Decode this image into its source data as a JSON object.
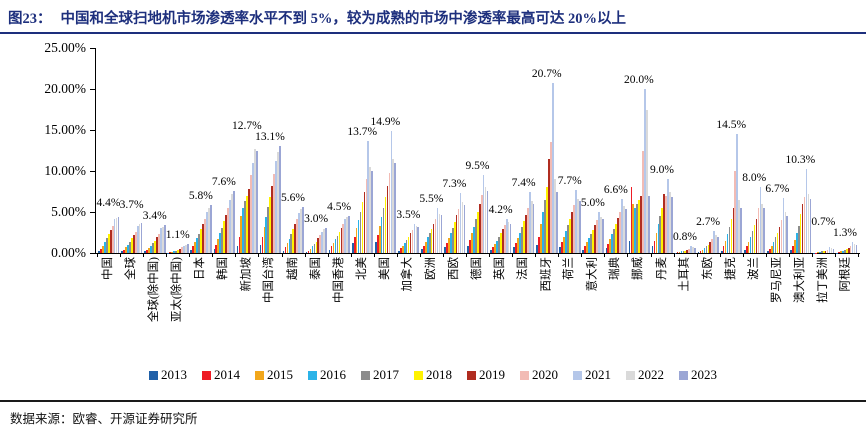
{
  "figure": {
    "label": "图23：",
    "title": "中国和全球扫地机市场渗透率水平不到 5%，较为成熟的市场中渗透率最高可达 20%以上",
    "source": "数据来源：欧睿、开源证券研究所",
    "accent_color": "#1D2F7D"
  },
  "chart_data": {
    "type": "bar",
    "unit": "percent",
    "ylim": [
      0,
      25
    ],
    "grid": false,
    "legend_position": "bottom",
    "y_ticks": [
      "25.00%",
      "20.00%",
      "15.00%",
      "10.00%",
      "5.00%",
      "0.00%"
    ],
    "years": [
      {
        "label": "2013",
        "color": "#2060A8"
      },
      {
        "label": "2014",
        "color": "#EE1C25"
      },
      {
        "label": "2015",
        "color": "#F2A71B"
      },
      {
        "label": "2016",
        "color": "#2BB3E8"
      },
      {
        "label": "2017",
        "color": "#8C8C8C"
      },
      {
        "label": "2018",
        "color": "#FFF200"
      },
      {
        "label": "2019",
        "color": "#B02C20"
      },
      {
        "label": "2020",
        "color": "#F2BBB4"
      },
      {
        "label": "2021",
        "color": "#B5C7E9"
      },
      {
        "label": "2022",
        "color": "#DADADA"
      },
      {
        "label": "2023",
        "color": "#9BA6D5"
      }
    ],
    "categories": [
      {
        "name": "中国",
        "label": "4.4%",
        "values": [
          0.2,
          0.5,
          0.9,
          1.3,
          1.8,
          2.3,
          2.8,
          3.3,
          4.1,
          4.3,
          4.4
        ]
      },
      {
        "name": "全球",
        "label": "3.7%",
        "values": [
          0.2,
          0.4,
          0.7,
          1.0,
          1.4,
          1.8,
          2.2,
          2.6,
          3.3,
          3.6,
          3.7
        ]
      },
      {
        "name": "全球(除中国)",
        "label": "3.4%",
        "values": [
          0.2,
          0.4,
          0.6,
          0.9,
          1.2,
          1.5,
          1.9,
          2.3,
          3.0,
          3.2,
          3.4
        ]
      },
      {
        "name": "亚太(除中国)",
        "label": "1.1%",
        "values": [
          0.05,
          0.1,
          0.15,
          0.2,
          0.3,
          0.4,
          0.5,
          0.7,
          0.9,
          1.0,
          1.1
        ]
      },
      {
        "name": "日本",
        "label": "5.8%",
        "values": [
          0.4,
          0.8,
          1.3,
          1.8,
          2.3,
          2.9,
          3.5,
          4.2,
          5.0,
          5.5,
          5.8
        ]
      },
      {
        "name": "韩国",
        "label": "7.6%",
        "values": [
          0.5,
          1.0,
          1.7,
          2.4,
          3.1,
          3.9,
          4.7,
          5.5,
          6.5,
          7.2,
          7.6
        ]
      },
      {
        "name": "新加坡",
        "label": "12.7%",
        "values": [
          0.8,
          2.0,
          4.5,
          5.5,
          6.3,
          7.0,
          7.8,
          9.5,
          11.0,
          12.7,
          12.4
        ]
      },
      {
        "name": "中国台湾",
        "label": "13.1%",
        "values": [
          1.0,
          2.0,
          3.2,
          4.4,
          5.6,
          6.8,
          8.2,
          9.6,
          11.2,
          12.3,
          13.1
        ]
      },
      {
        "name": "越南",
        "label": "5.6%",
        "values": [
          0.3,
          0.7,
          1.2,
          1.7,
          2.3,
          2.9,
          3.5,
          4.2,
          4.9,
          5.4,
          5.6
        ]
      },
      {
        "name": "泰国",
        "label": "3.0%",
        "values": [
          0.1,
          0.3,
          0.5,
          0.8,
          1.1,
          1.4,
          1.8,
          2.2,
          2.6,
          2.9,
          3.0
        ]
      },
      {
        "name": "中国香港",
        "label": "4.5%",
        "values": [
          0.4,
          0.8,
          1.2,
          1.7,
          2.1,
          2.6,
          3.1,
          3.6,
          4.1,
          4.4,
          4.5
        ]
      },
      {
        "name": "北美",
        "label": "13.7%",
        "values": [
          1.2,
          2.0,
          3.0,
          4.0,
          5.0,
          6.2,
          7.5,
          9.0,
          13.7,
          10.5,
          10.0
        ]
      },
      {
        "name": "美国",
        "label": "14.9%",
        "values": [
          1.3,
          2.2,
          3.3,
          4.4,
          5.5,
          6.8,
          8.2,
          9.8,
          14.9,
          11.5,
          11.0
        ]
      },
      {
        "name": "加拿大",
        "label": "3.5%",
        "values": [
          0.3,
          0.6,
          0.9,
          1.2,
          1.6,
          2.0,
          2.4,
          2.8,
          3.5,
          3.3,
          3.2
        ]
      },
      {
        "name": "欧洲",
        "label": "5.5%",
        "values": [
          0.5,
          0.9,
          1.4,
          1.9,
          2.4,
          2.9,
          3.5,
          4.1,
          5.5,
          4.8,
          4.6
        ]
      },
      {
        "name": "西欧",
        "label": "7.3%",
        "values": [
          0.7,
          1.2,
          1.8,
          2.4,
          3.1,
          3.8,
          4.6,
          5.4,
          7.3,
          6.2,
          5.9
        ]
      },
      {
        "name": "德国",
        "label": "9.5%",
        "values": [
          0.9,
          1.6,
          2.4,
          3.2,
          4.1,
          5.0,
          6.0,
          7.1,
          9.5,
          8.0,
          7.6
        ]
      },
      {
        "name": "英国",
        "label": "4.2%",
        "values": [
          0.4,
          0.7,
          1.1,
          1.5,
          1.9,
          2.4,
          2.9,
          3.4,
          4.2,
          3.8,
          3.6
        ]
      },
      {
        "name": "法国",
        "label": "7.4%",
        "values": [
          0.7,
          1.2,
          1.8,
          2.5,
          3.2,
          3.9,
          4.7,
          5.5,
          7.4,
          6.3,
          6.0
        ]
      },
      {
        "name": "西班牙",
        "label": "20.7%",
        "values": [
          1.0,
          2.0,
          3.5,
          5.0,
          6.5,
          8.0,
          11.5,
          13.5,
          20.7,
          9.0,
          7.5
        ]
      },
      {
        "name": "荷兰",
        "label": "7.7%",
        "values": [
          0.7,
          1.3,
          2.0,
          2.7,
          3.4,
          4.2,
          5.0,
          5.9,
          7.7,
          6.6,
          6.3
        ]
      },
      {
        "name": "意大利",
        "label": "5.0%",
        "values": [
          0.4,
          0.8,
          1.3,
          1.8,
          2.3,
          2.8,
          3.4,
          4.0,
          5.0,
          4.4,
          4.2
        ]
      },
      {
        "name": "瑞典",
        "label": "6.6%",
        "values": [
          0.6,
          1.1,
          1.7,
          2.3,
          2.9,
          3.6,
          4.3,
          5.0,
          6.6,
          5.7,
          5.4
        ]
      },
      {
        "name": "挪威",
        "label": "20.0%",
        "values": [
          1.5,
          8.0,
          6.0,
          5.5,
          6.0,
          6.5,
          7.0,
          12.5,
          20.0,
          17.5,
          7.0
        ]
      },
      {
        "name": "丹麦",
        "label": "9.0%",
        "values": [
          0.8,
          1.5,
          2.5,
          3.5,
          4.5,
          5.5,
          7.2,
          7.0,
          9.0,
          7.4,
          6.8
        ]
      },
      {
        "name": "土耳其",
        "label": "0.8%",
        "values": [
          0.05,
          0.1,
          0.15,
          0.2,
          0.25,
          0.3,
          0.4,
          0.5,
          0.8,
          0.7,
          0.6
        ]
      },
      {
        "name": "东欧",
        "label": "2.7%",
        "values": [
          0.1,
          0.2,
          0.4,
          0.6,
          0.8,
          1.0,
          1.3,
          1.7,
          2.7,
          2.2,
          2.0
        ]
      },
      {
        "name": "捷克",
        "label": "14.5%",
        "values": [
          0.3,
          0.8,
          1.5,
          2.3,
          3.2,
          4.2,
          5.5,
          10.0,
          14.5,
          6.5,
          5.5
        ]
      },
      {
        "name": "波兰",
        "label": "8.0%",
        "values": [
          0.4,
          0.8,
          1.4,
          2.0,
          2.7,
          3.4,
          4.2,
          5.5,
          8.0,
          6.0,
          5.5
        ]
      },
      {
        "name": "罗马尼亚",
        "label": "6.7%",
        "values": [
          0.2,
          0.5,
          0.9,
          1.4,
          1.9,
          2.5,
          3.2,
          4.0,
          6.7,
          5.0,
          4.5
        ]
      },
      {
        "name": "澳大利亚",
        "label": "10.3%",
        "values": [
          0.4,
          0.9,
          1.6,
          2.4,
          3.3,
          4.8,
          6.0,
          6.8,
          10.3,
          7.2,
          6.6
        ]
      },
      {
        "name": "拉丁美洲",
        "label": "0.7%",
        "values": [
          0.03,
          0.06,
          0.1,
          0.15,
          0.2,
          0.25,
          0.3,
          0.4,
          0.7,
          0.6,
          0.55
        ]
      },
      {
        "name": "阿根廷",
        "label": "1.3%",
        "values": [
          0.05,
          0.1,
          0.2,
          0.3,
          0.4,
          0.5,
          0.6,
          0.8,
          1.3,
          1.1,
          1.0
        ]
      }
    ]
  }
}
